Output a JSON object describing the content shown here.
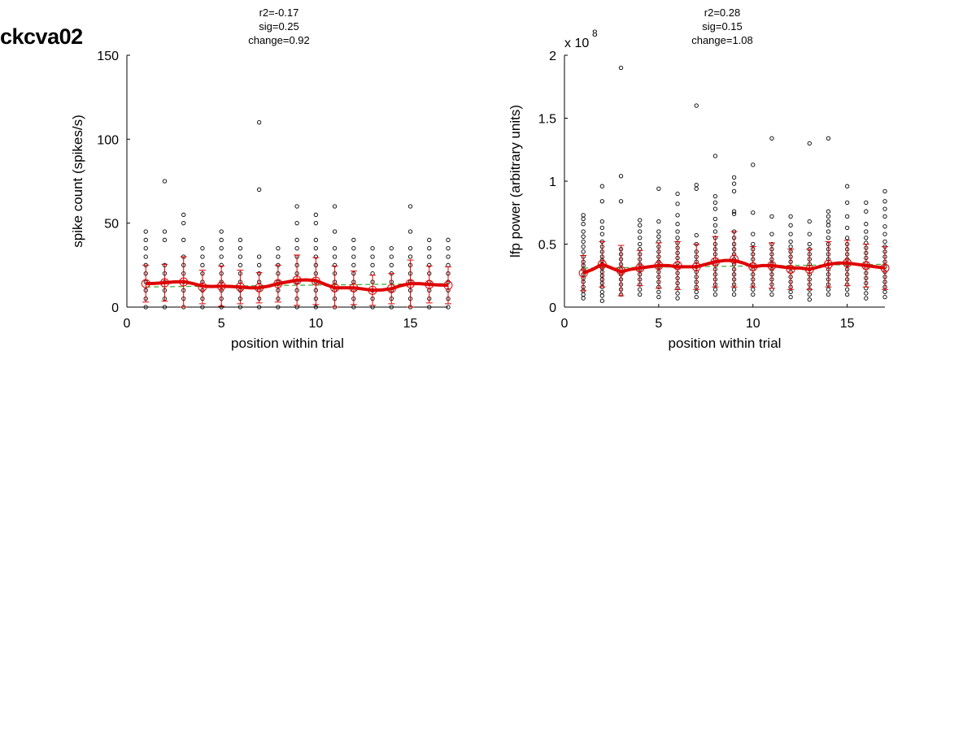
{
  "figure": {
    "title": "ckcva02"
  },
  "chart_data": [
    {
      "type": "scatter",
      "stats": [
        "r2=-0.17",
        "sig=0.25",
        "change=0.92"
      ],
      "xlabel": "position within trial",
      "ylabel": "spike count (spikes/s)",
      "xlim": [
        0,
        17
      ],
      "ylim": [
        0,
        150
      ],
      "xticks": [
        0,
        5,
        10,
        15
      ],
      "yticks": [
        0,
        50,
        100,
        150
      ],
      "ytick_labels": [
        "0",
        "50",
        "100",
        "150"
      ],
      "exponent_label": "",
      "raw_points_values": [
        [
          0,
          5,
          10,
          15,
          20,
          25,
          30,
          35,
          40,
          45
        ],
        [
          0,
          5,
          10,
          15,
          20,
          25,
          40,
          45,
          75
        ],
        [
          0,
          5,
          10,
          15,
          20,
          25,
          30,
          40,
          50,
          55
        ],
        [
          0,
          5,
          10,
          15,
          20,
          25,
          30,
          35
        ],
        [
          0,
          5,
          10,
          15,
          20,
          25,
          30,
          35,
          40,
          45
        ],
        [
          0,
          5,
          10,
          15,
          20,
          25,
          30,
          35,
          40
        ],
        [
          0,
          5,
          10,
          15,
          20,
          25,
          30,
          70,
          110
        ],
        [
          0,
          5,
          10,
          15,
          20,
          25,
          30,
          35
        ],
        [
          0,
          5,
          10,
          15,
          20,
          25,
          30,
          35,
          40,
          50,
          60
        ],
        [
          0,
          5,
          10,
          15,
          20,
          25,
          30,
          35,
          40,
          50,
          55
        ],
        [
          0,
          5,
          10,
          15,
          20,
          25,
          30,
          35,
          45,
          60
        ],
        [
          0,
          5,
          10,
          15,
          20,
          25,
          30,
          35,
          40
        ],
        [
          0,
          5,
          10,
          15,
          20,
          25,
          30,
          35
        ],
        [
          0,
          5,
          10,
          15,
          20,
          25,
          30,
          35
        ],
        [
          0,
          5,
          10,
          15,
          20,
          25,
          30,
          35,
          45,
          60
        ],
        [
          0,
          5,
          10,
          15,
          20,
          25,
          30,
          35,
          40
        ],
        [
          0,
          5,
          10,
          15,
          20,
          25,
          30,
          35,
          40
        ]
      ],
      "mean_x": [
        1,
        2,
        3,
        4,
        5,
        6,
        7,
        8,
        9,
        10,
        11,
        12,
        13,
        14,
        15,
        16,
        17
      ],
      "mean": [
        14,
        14.5,
        15,
        12,
        12.5,
        12,
        11.5,
        14,
        16,
        15.5,
        11.5,
        11.5,
        10,
        11,
        14,
        13.5,
        13
      ],
      "err": [
        11,
        11,
        15,
        10,
        12,
        10,
        9,
        11,
        15,
        14,
        13,
        10,
        9,
        9,
        14,
        11,
        11
      ],
      "smooth_x": [
        1,
        1.5,
        2,
        2.5,
        3,
        3.5,
        4,
        4.5,
        5,
        5.5,
        6,
        6.5,
        7,
        7.5,
        8,
        8.5,
        9,
        9.5,
        10,
        10.5,
        11,
        11.5,
        12,
        12.5,
        13,
        13.5,
        14,
        14.5,
        15,
        15.5,
        16,
        16.5,
        17
      ],
      "smooth": [
        14,
        14.2,
        14.5,
        15,
        15.2,
        14,
        12.5,
        12.3,
        12.5,
        12.3,
        12,
        11.5,
        11.5,
        12.5,
        14,
        15,
        16,
        16.2,
        15.8,
        13.5,
        11.5,
        11.5,
        11.5,
        10.8,
        10,
        10.2,
        11,
        12.8,
        14,
        14,
        13.5,
        13.2,
        13
      ],
      "fit": [
        12,
        14
      ],
      "colors": {
        "points": "#000000",
        "mean": "#e00000",
        "smooth": "#e00000",
        "fit": "#33aa33"
      }
    },
    {
      "type": "scatter",
      "stats": [
        "r2=0.28",
        "sig=0.15",
        "change=1.08"
      ],
      "xlabel": "position within trial",
      "ylabel": "lfp power (arbitrary units)",
      "xlim": [
        0,
        17
      ],
      "ylim": [
        0,
        2
      ],
      "xticks": [
        0,
        5,
        10,
        15
      ],
      "yticks": [
        0,
        0.5,
        1,
        1.5,
        2
      ],
      "ytick_labels": [
        "0",
        "0.5",
        "1",
        "1.5",
        "2"
      ],
      "exponent_label": "x 10",
      "exponent_power": "8",
      "raw_points_values": [
        [
          0.07,
          0.1,
          0.13,
          0.16,
          0.2,
          0.23,
          0.26,
          0.3,
          0.33,
          0.36,
          0.4,
          0.44,
          0.48,
          0.52,
          0.56,
          0.6,
          0.66,
          0.7,
          0.73
        ],
        [
          0.05,
          0.09,
          0.12,
          0.16,
          0.19,
          0.22,
          0.25,
          0.28,
          0.31,
          0.34,
          0.37,
          0.4,
          0.44,
          0.48,
          0.52,
          0.58,
          0.63,
          0.68,
          0.84,
          0.96
        ],
        [
          0.1,
          0.14,
          0.18,
          0.22,
          0.26,
          0.3,
          0.34,
          0.38,
          0.42,
          0.46,
          0.84,
          1.04,
          1.9
        ],
        [
          0.1,
          0.14,
          0.18,
          0.22,
          0.26,
          0.3,
          0.34,
          0.38,
          0.42,
          0.46,
          0.5,
          0.55,
          0.6,
          0.65,
          0.69
        ],
        [
          0.08,
          0.12,
          0.16,
          0.2,
          0.24,
          0.28,
          0.32,
          0.36,
          0.4,
          0.44,
          0.48,
          0.52,
          0.56,
          0.6,
          0.68,
          0.94
        ],
        [
          0.07,
          0.11,
          0.15,
          0.19,
          0.23,
          0.27,
          0.31,
          0.35,
          0.39,
          0.43,
          0.47,
          0.51,
          0.55,
          0.6,
          0.66,
          0.73,
          0.82,
          0.9
        ],
        [
          0.08,
          0.12,
          0.16,
          0.2,
          0.24,
          0.28,
          0.32,
          0.36,
          0.4,
          0.44,
          0.5,
          0.57,
          0.94,
          0.97,
          1.6
        ],
        [
          0.1,
          0.14,
          0.18,
          0.22,
          0.26,
          0.3,
          0.34,
          0.38,
          0.42,
          0.46,
          0.5,
          0.55,
          0.6,
          0.65,
          0.7,
          0.78,
          0.83,
          0.88,
          1.2
        ],
        [
          0.1,
          0.14,
          0.18,
          0.22,
          0.26,
          0.3,
          0.34,
          0.38,
          0.42,
          0.46,
          0.5,
          0.55,
          0.6,
          0.74,
          0.76,
          0.92,
          0.98,
          1.03
        ],
        [
          0.1,
          0.14,
          0.18,
          0.22,
          0.26,
          0.3,
          0.34,
          0.38,
          0.42,
          0.46,
          0.5,
          0.58,
          0.75,
          1.13
        ],
        [
          0.1,
          0.14,
          0.18,
          0.22,
          0.26,
          0.3,
          0.34,
          0.38,
          0.42,
          0.46,
          0.5,
          0.58,
          0.72,
          1.34
        ],
        [
          0.08,
          0.12,
          0.16,
          0.2,
          0.24,
          0.28,
          0.32,
          0.36,
          0.4,
          0.44,
          0.48,
          0.52,
          0.58,
          0.65,
          0.72
        ],
        [
          0.06,
          0.1,
          0.14,
          0.18,
          0.22,
          0.26,
          0.3,
          0.34,
          0.38,
          0.42,
          0.46,
          0.5,
          0.58,
          0.68,
          1.3
        ],
        [
          0.1,
          0.14,
          0.18,
          0.22,
          0.26,
          0.3,
          0.34,
          0.38,
          0.42,
          0.46,
          0.5,
          0.55,
          0.6,
          0.65,
          0.68,
          0.72,
          0.76,
          1.34
        ],
        [
          0.1,
          0.14,
          0.18,
          0.22,
          0.26,
          0.3,
          0.34,
          0.38,
          0.42,
          0.46,
          0.5,
          0.55,
          0.63,
          0.72,
          0.83,
          0.96
        ],
        [
          0.07,
          0.11,
          0.15,
          0.19,
          0.23,
          0.27,
          0.31,
          0.35,
          0.39,
          0.43,
          0.47,
          0.51,
          0.55,
          0.6,
          0.66,
          0.76,
          0.83
        ],
        [
          0.08,
          0.12,
          0.16,
          0.2,
          0.24,
          0.28,
          0.32,
          0.36,
          0.4,
          0.44,
          0.48,
          0.52,
          0.58,
          0.64,
          0.72,
          0.78,
          0.84,
          0.92
        ]
      ],
      "mean_x": [
        1,
        2,
        3,
        4,
        5,
        6,
        7,
        8,
        9,
        10,
        11,
        12,
        13,
        14,
        15,
        16,
        17
      ],
      "mean": [
        0.27,
        0.34,
        0.29,
        0.31,
        0.33,
        0.33,
        0.32,
        0.36,
        0.38,
        0.32,
        0.33,
        0.3,
        0.3,
        0.34,
        0.35,
        0.33,
        0.31
      ],
      "err": [
        0.14,
        0.18,
        0.2,
        0.14,
        0.18,
        0.19,
        0.18,
        0.2,
        0.22,
        0.16,
        0.18,
        0.16,
        0.16,
        0.18,
        0.18,
        0.17,
        0.17
      ],
      "smooth_x": [
        1,
        1.5,
        2,
        2.5,
        3,
        3.5,
        4,
        4.5,
        5,
        5.5,
        6,
        6.5,
        7,
        7.5,
        8,
        8.5,
        9,
        9.5,
        10,
        10.5,
        11,
        11.5,
        12,
        12.5,
        13,
        13.5,
        14,
        14.5,
        15,
        15.5,
        16,
        16.5,
        17
      ],
      "smooth": [
        0.27,
        0.3,
        0.34,
        0.31,
        0.28,
        0.3,
        0.31,
        0.32,
        0.33,
        0.33,
        0.32,
        0.32,
        0.32,
        0.34,
        0.36,
        0.37,
        0.37,
        0.35,
        0.32,
        0.33,
        0.33,
        0.32,
        0.31,
        0.31,
        0.3,
        0.32,
        0.34,
        0.35,
        0.35,
        0.34,
        0.33,
        0.32,
        0.31
      ],
      "fit": [
        0.31,
        0.34
      ],
      "colors": {
        "points": "#000000",
        "mean": "#e00000",
        "smooth": "#e00000",
        "fit": "#33aa33"
      }
    }
  ]
}
